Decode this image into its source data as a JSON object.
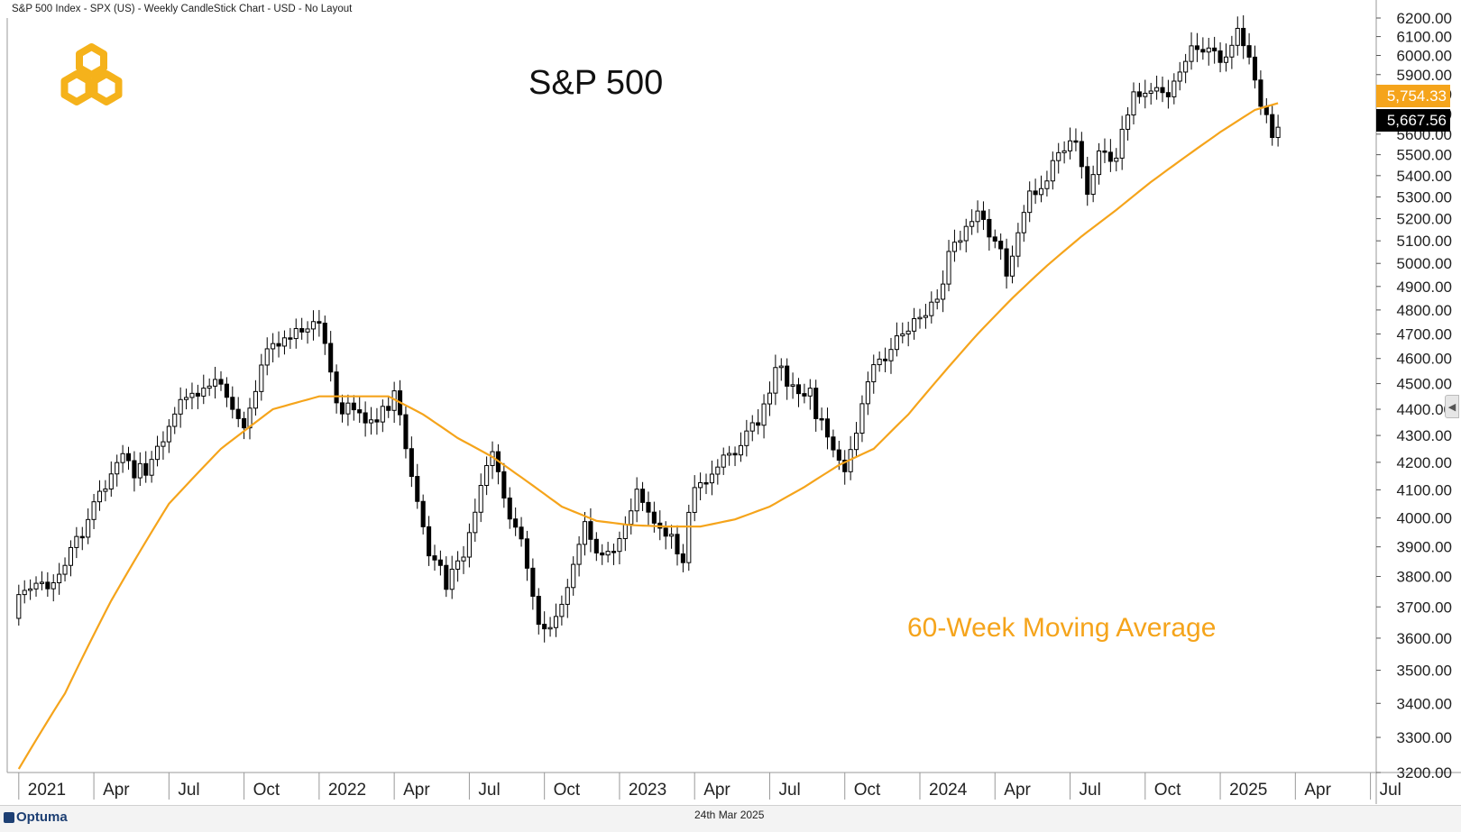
{
  "header": {
    "chart_description": "S&P 500 Index - SPX (US) - Weekly CandleStick Chart - USD - No Layout"
  },
  "price_boxes": {
    "moving_average": "5,754.33",
    "last": "5,667.56"
  },
  "footer": {
    "brand": "Optuma",
    "date": "24th Mar 2025"
  },
  "colors": {
    "moving_average": "#f5a41b",
    "logo": "#f5b21b",
    "candle_up_fill": "#ffffff",
    "candle_down_fill": "#000000",
    "axis_line": "#999999"
  },
  "chart_data": {
    "type": "candlestick",
    "title": "S&P 500",
    "annotation": "60-Week Moving Average",
    "ylim": [
      3200,
      6200
    ],
    "y_scale": "log",
    "y_ticks": [
      3200,
      3300,
      3400,
      3500,
      3600,
      3700,
      3800,
      3900,
      4000,
      4100,
      4200,
      4300,
      4400,
      4500,
      4600,
      4700,
      4800,
      4900,
      5000,
      5100,
      5200,
      5300,
      5400,
      5500,
      5600,
      5700,
      5800,
      5900,
      6000,
      6100,
      6200
    ],
    "y_tick_labels": [
      "3200.00",
      "3300.00",
      "3400.00",
      "3500.00",
      "3600.00",
      "3700.00",
      "3800.00",
      "3900.00",
      "4000.00",
      "4100.00",
      "4200.00",
      "4300.00",
      "4400.00",
      "4500.00",
      "4600.00",
      "4700.00",
      "4800.00",
      "4900.00",
      "5000.00",
      "5100.00",
      "5200.00",
      "5300.00",
      "5400.00",
      "5500.00",
      "5600.00",
      "5700.00",
      "5800.00",
      "5900.00",
      "6000.00",
      "6100.00",
      "6200.00"
    ],
    "x_range_weeks": [
      -2,
      235
    ],
    "x_ticks": [
      {
        "label": "2021",
        "week": 0
      },
      {
        "label": "Apr",
        "week": 13
      },
      {
        "label": "Jul",
        "week": 26
      },
      {
        "label": "Oct",
        "week": 39
      },
      {
        "label": "2022",
        "week": 52
      },
      {
        "label": "Apr",
        "week": 65
      },
      {
        "label": "Jul",
        "week": 78
      },
      {
        "label": "Oct",
        "week": 91
      },
      {
        "label": "2023",
        "week": 104
      },
      {
        "label": "Apr",
        "week": 117
      },
      {
        "label": "Jul",
        "week": 130
      },
      {
        "label": "Oct",
        "week": 143
      },
      {
        "label": "2024",
        "week": 156
      },
      {
        "label": "Apr",
        "week": 169
      },
      {
        "label": "Jul",
        "week": 182
      },
      {
        "label": "Oct",
        "week": 195
      },
      {
        "label": "2025",
        "week": 208
      },
      {
        "label": "Apr",
        "week": 221
      },
      {
        "label": "Jul",
        "week": 234
      }
    ],
    "closes": [
      {
        "week": 0,
        "value": 3700
      },
      {
        "week": 4,
        "value": 3770
      },
      {
        "week": 8,
        "value": 3880
      },
      {
        "week": 13,
        "value": 4020
      },
      {
        "week": 17,
        "value": 4180
      },
      {
        "week": 22,
        "value": 4200
      },
      {
        "week": 26,
        "value": 4350
      },
      {
        "week": 30,
        "value": 4430
      },
      {
        "week": 35,
        "value": 4520
      },
      {
        "week": 39,
        "value": 4350
      },
      {
        "week": 43,
        "value": 4600
      },
      {
        "week": 47,
        "value": 4680
      },
      {
        "week": 52,
        "value": 4770
      },
      {
        "week": 55,
        "value": 4450
      },
      {
        "week": 58,
        "value": 4350
      },
      {
        "week": 62,
        "value": 4300
      },
      {
        "week": 65,
        "value": 4520
      },
      {
        "week": 68,
        "value": 4150
      },
      {
        "week": 71,
        "value": 3900
      },
      {
        "week": 74,
        "value": 3750
      },
      {
        "week": 77,
        "value": 3850
      },
      {
        "week": 80,
        "value": 4130
      },
      {
        "week": 82,
        "value": 4280
      },
      {
        "week": 84,
        "value": 4100
      },
      {
        "week": 87,
        "value": 3900
      },
      {
        "week": 90,
        "value": 3640
      },
      {
        "week": 92,
        "value": 3600
      },
      {
        "week": 95,
        "value": 3800
      },
      {
        "week": 98,
        "value": 4000
      },
      {
        "week": 101,
        "value": 3850
      },
      {
        "week": 104,
        "value": 3900
      },
      {
        "week": 107,
        "value": 4070
      },
      {
        "week": 110,
        "value": 4000
      },
      {
        "week": 113,
        "value": 3950
      },
      {
        "week": 115,
        "value": 3860
      },
      {
        "week": 117,
        "value": 4100
      },
      {
        "week": 121,
        "value": 4150
      },
      {
        "week": 125,
        "value": 4290
      },
      {
        "week": 128,
        "value": 4380
      },
      {
        "week": 131,
        "value": 4550
      },
      {
        "week": 134,
        "value": 4450
      },
      {
        "week": 137,
        "value": 4450
      },
      {
        "week": 140,
        "value": 4320
      },
      {
        "week": 143,
        "value": 4200
      },
      {
        "week": 145,
        "value": 4350
      },
      {
        "week": 148,
        "value": 4550
      },
      {
        "week": 151,
        "value": 4600
      },
      {
        "week": 154,
        "value": 4760
      },
      {
        "week": 157,
        "value": 4790
      },
      {
        "week": 160,
        "value": 4950
      },
      {
        "week": 163,
        "value": 5100
      },
      {
        "week": 166,
        "value": 5200
      },
      {
        "week": 169,
        "value": 5150
      },
      {
        "week": 171,
        "value": 4980
      },
      {
        "week": 174,
        "value": 5250
      },
      {
        "week": 177,
        "value": 5300
      },
      {
        "week": 180,
        "value": 5460
      },
      {
        "week": 183,
        "value": 5570
      },
      {
        "week": 185,
        "value": 5350
      },
      {
        "week": 187,
        "value": 5550
      },
      {
        "week": 190,
        "value": 5470
      },
      {
        "week": 193,
        "value": 5750
      },
      {
        "week": 197,
        "value": 5820
      },
      {
        "week": 200,
        "value": 5870
      },
      {
        "week": 203,
        "value": 6060
      },
      {
        "week": 206,
        "value": 5980
      },
      {
        "week": 209,
        "value": 5950
      },
      {
        "week": 211,
        "value": 6080
      },
      {
        "week": 213,
        "value": 6020
      },
      {
        "week": 215,
        "value": 5770
      },
      {
        "week": 217,
        "value": 5640
      },
      {
        "week": 218,
        "value": 5667.56
      }
    ],
    "moving_average_60w": [
      {
        "week": 0,
        "value": 3210
      },
      {
        "week": 8,
        "value": 3430
      },
      {
        "week": 16,
        "value": 3720
      },
      {
        "week": 26,
        "value": 4050
      },
      {
        "week": 35,
        "value": 4250
      },
      {
        "week": 44,
        "value": 4400
      },
      {
        "week": 52,
        "value": 4450
      },
      {
        "week": 58,
        "value": 4450
      },
      {
        "week": 64,
        "value": 4450
      },
      {
        "week": 70,
        "value": 4380
      },
      {
        "week": 76,
        "value": 4290
      },
      {
        "week": 82,
        "value": 4220
      },
      {
        "week": 88,
        "value": 4130
      },
      {
        "week": 94,
        "value": 4040
      },
      {
        "week": 100,
        "value": 3990
      },
      {
        "week": 106,
        "value": 3975
      },
      {
        "week": 112,
        "value": 3970
      },
      {
        "week": 118,
        "value": 3970
      },
      {
        "week": 124,
        "value": 3995
      },
      {
        "week": 130,
        "value": 4040
      },
      {
        "week": 136,
        "value": 4110
      },
      {
        "week": 142,
        "value": 4190
      },
      {
        "week": 148,
        "value": 4250
      },
      {
        "week": 154,
        "value": 4380
      },
      {
        "week": 160,
        "value": 4540
      },
      {
        "week": 166,
        "value": 4700
      },
      {
        "week": 172,
        "value": 4850
      },
      {
        "week": 178,
        "value": 4990
      },
      {
        "week": 184,
        "value": 5120
      },
      {
        "week": 190,
        "value": 5240
      },
      {
        "week": 196,
        "value": 5370
      },
      {
        "week": 202,
        "value": 5490
      },
      {
        "week": 208,
        "value": 5610
      },
      {
        "week": 214,
        "value": 5720
      },
      {
        "week": 218,
        "value": 5754.33
      }
    ]
  }
}
